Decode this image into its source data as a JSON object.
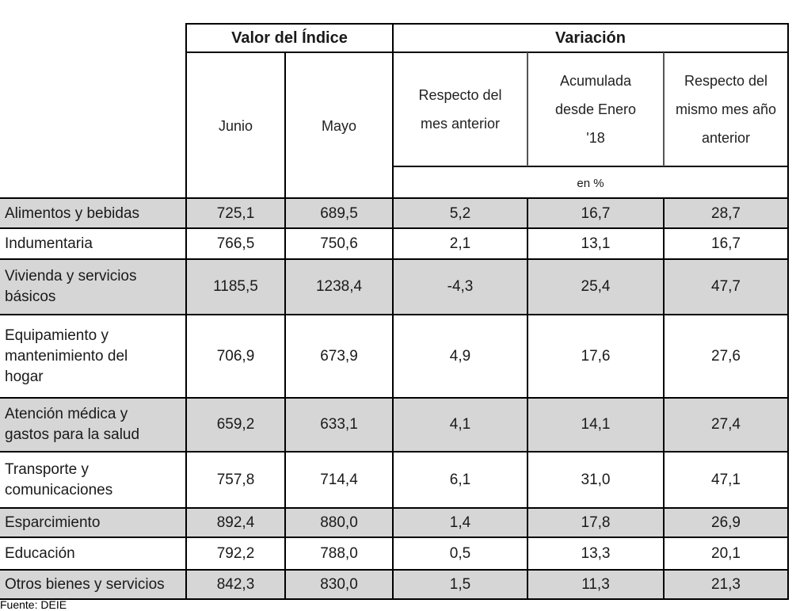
{
  "header": {
    "group_index": "Valor del Índice",
    "group_variation": "Variación",
    "col_jun": "Junio",
    "col_may": "Mayo",
    "col_mes_anterior": "Respecto del mes anterior",
    "col_acumulada": "Acumulada desde Enero '18",
    "col_anual": "Respecto del mismo mes año anterior",
    "unit": "en %"
  },
  "rows": [
    {
      "label": "Alimentos y bebidas",
      "junio": "725,1",
      "mayo": "689,5",
      "mensual": "5,2",
      "acumulada": "16,7",
      "anual": "28,7"
    },
    {
      "label": "Indumentaria",
      "junio": "766,5",
      "mayo": "750,6",
      "mensual": "2,1",
      "acumulada": "13,1",
      "anual": "16,7"
    },
    {
      "label": "Vivienda y servicios básicos",
      "junio": "1185,5",
      "mayo": "1238,4",
      "mensual": "-4,3",
      "acumulada": "25,4",
      "anual": "47,7"
    },
    {
      "label": "Equipamiento y mantenimiento del hogar",
      "junio": "706,9",
      "mayo": "673,9",
      "mensual": "4,9",
      "acumulada": "17,6",
      "anual": "27,6"
    },
    {
      "label": "Atención médica y gastos para la salud",
      "junio": "659,2",
      "mayo": "633,1",
      "mensual": "4,1",
      "acumulada": "14,1",
      "anual": "27,4"
    },
    {
      "label": "Transporte y comunicaciones",
      "junio": "757,8",
      "mayo": "714,4",
      "mensual": "6,1",
      "acumulada": "31,0",
      "anual": "47,1"
    },
    {
      "label": "Esparcimiento",
      "junio": "892,4",
      "mayo": "880,0",
      "mensual": "1,4",
      "acumulada": "17,8",
      "anual": "26,9"
    },
    {
      "label": "Educación",
      "junio": "792,2",
      "mayo": "788,0",
      "mensual": "0,5",
      "acumulada": "13,3",
      "anual": "20,1"
    },
    {
      "label": "Otros bienes y servicios",
      "junio": "842,3",
      "mayo": "830,0",
      "mensual": "1,5",
      "acumulada": "11,3",
      "anual": "21,3"
    }
  ],
  "source": "Fuente: DEIE",
  "colors": {
    "row_shade": "#d6d6d6",
    "grid": "#000000"
  }
}
